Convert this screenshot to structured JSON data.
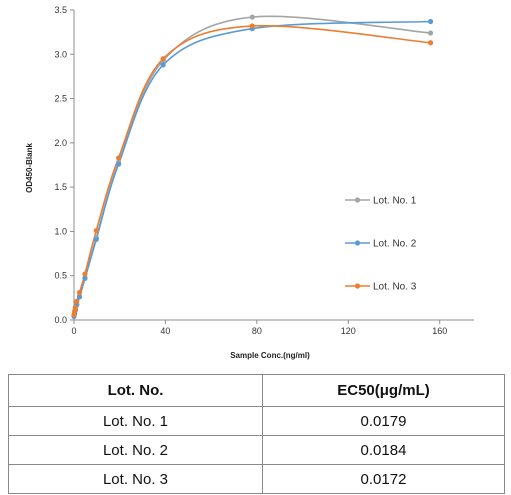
{
  "chart_data": {
    "type": "line",
    "title": "",
    "xlabel": "Sample Conc.(ng/ml)",
    "ylabel": "OD450-Blank",
    "xlim": [
      0,
      175
    ],
    "ylim": [
      0,
      3.5
    ],
    "xticks": [
      0,
      40,
      80,
      120,
      160
    ],
    "yticks": [
      0.0,
      0.5,
      1.0,
      1.5,
      2.0,
      2.5,
      3.0,
      3.5
    ],
    "ytick_labels": [
      "0.0",
      "0.5",
      "1.0",
      "1.5",
      "2.0",
      "2.5",
      "3.0",
      "3.5"
    ],
    "grid": false,
    "legend_position": "right",
    "x": [
      0.0,
      0.3,
      0.6,
      1.2,
      2.4,
      4.8,
      9.75,
      19.5,
      39,
      78,
      156
    ],
    "series": [
      {
        "name": "Lot. No. 1",
        "color": "#a5a5a5",
        "values": [
          0.05,
          0.08,
          0.12,
          0.18,
          0.27,
          0.48,
          0.93,
          1.78,
          2.93,
          3.42,
          3.24
        ]
      },
      {
        "name": "Lot. No. 2",
        "color": "#5b9bd5",
        "values": [
          0.04,
          0.07,
          0.11,
          0.17,
          0.26,
          0.47,
          0.91,
          1.76,
          2.88,
          3.29,
          3.37
        ]
      },
      {
        "name": "Lot. No. 3",
        "color": "#ed7d31",
        "values": [
          0.06,
          0.1,
          0.14,
          0.21,
          0.31,
          0.52,
          1.01,
          1.83,
          2.95,
          3.32,
          3.13
        ]
      }
    ]
  },
  "table": {
    "headers": [
      "Lot. No.",
      "EC50(μg/mL)"
    ],
    "rows": [
      [
        "Lot. No. 1",
        "0.0179"
      ],
      [
        "Lot. No. 2",
        "0.0184"
      ],
      [
        "Lot. No. 3",
        "0.0172"
      ]
    ]
  }
}
